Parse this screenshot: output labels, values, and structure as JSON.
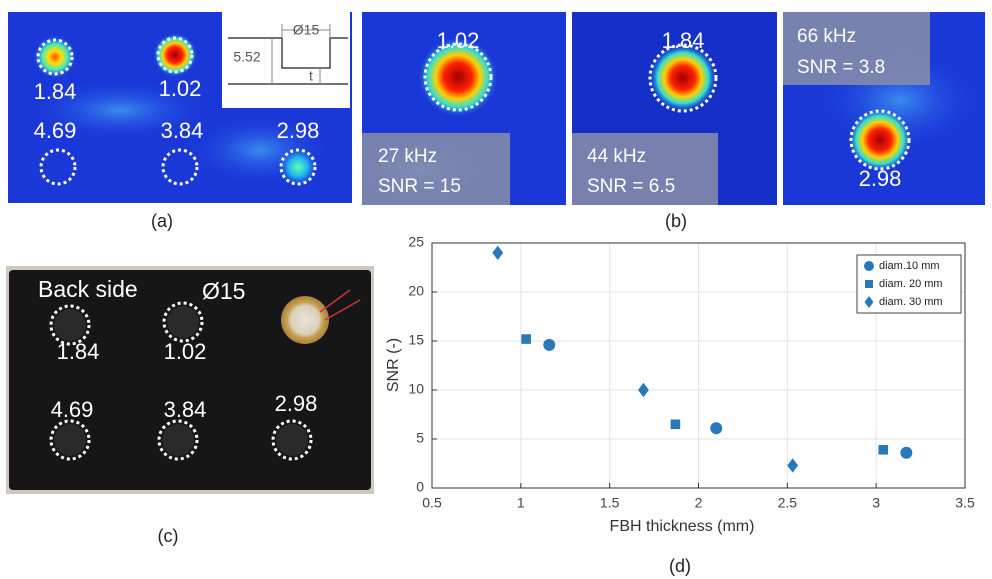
{
  "panel_a": {
    "labels": [
      "1.84",
      "1.02",
      "4.69",
      "3.84",
      "2.98"
    ],
    "inset": {
      "diameter": "Ø15",
      "depth": "5.52",
      "thickness": "t"
    },
    "caption": "(a)"
  },
  "panel_b": {
    "images": [
      {
        "value": "1.02",
        "frequency": "27 kHz",
        "snr": "SNR = 15"
      },
      {
        "value": "1.84",
        "frequency": "44 kHz",
        "snr": "SNR = 6.5"
      },
      {
        "value": "2.98",
        "frequency": "66 kHz",
        "snr": "SNR = 3.8"
      }
    ],
    "caption": "(b)"
  },
  "panel_c": {
    "title": "Back side",
    "diameter": "Ø15",
    "labels": [
      "1.84",
      "1.02",
      "4.69",
      "3.84",
      "2.98"
    ],
    "caption": "(c)"
  },
  "panel_d": {
    "caption": "(d)"
  },
  "chart_data": {
    "type": "scatter",
    "x_label": "FBH thickness (mm)",
    "y_label": "SNR (-)",
    "xlim": [
      0.5,
      3.5
    ],
    "xticks": [
      0.5,
      1,
      1.5,
      2,
      2.5,
      3,
      3.5
    ],
    "ylim": [
      0,
      25
    ],
    "yticks": [
      0,
      5,
      10,
      15,
      20,
      25
    ],
    "grid": true,
    "legend": "upper right",
    "series": [
      {
        "name": "diam.10 mm",
        "color": "#2b78b8",
        "marker": "circle",
        "x": [
          1.16,
          2.1,
          3.17
        ],
        "values": [
          14.6,
          6.1,
          3.6
        ]
      },
      {
        "name": "diam. 20 mm",
        "color": "#2b78b8",
        "marker": "square",
        "x": [
          1.03,
          1.87,
          3.04
        ],
        "values": [
          15.2,
          6.5,
          3.9
        ]
      },
      {
        "name": "diam. 30 mm",
        "color": "#2b78b8",
        "marker": "diamond",
        "x": [
          0.87,
          1.69,
          2.53
        ],
        "values": [
          24,
          10,
          2.3
        ]
      }
    ]
  }
}
